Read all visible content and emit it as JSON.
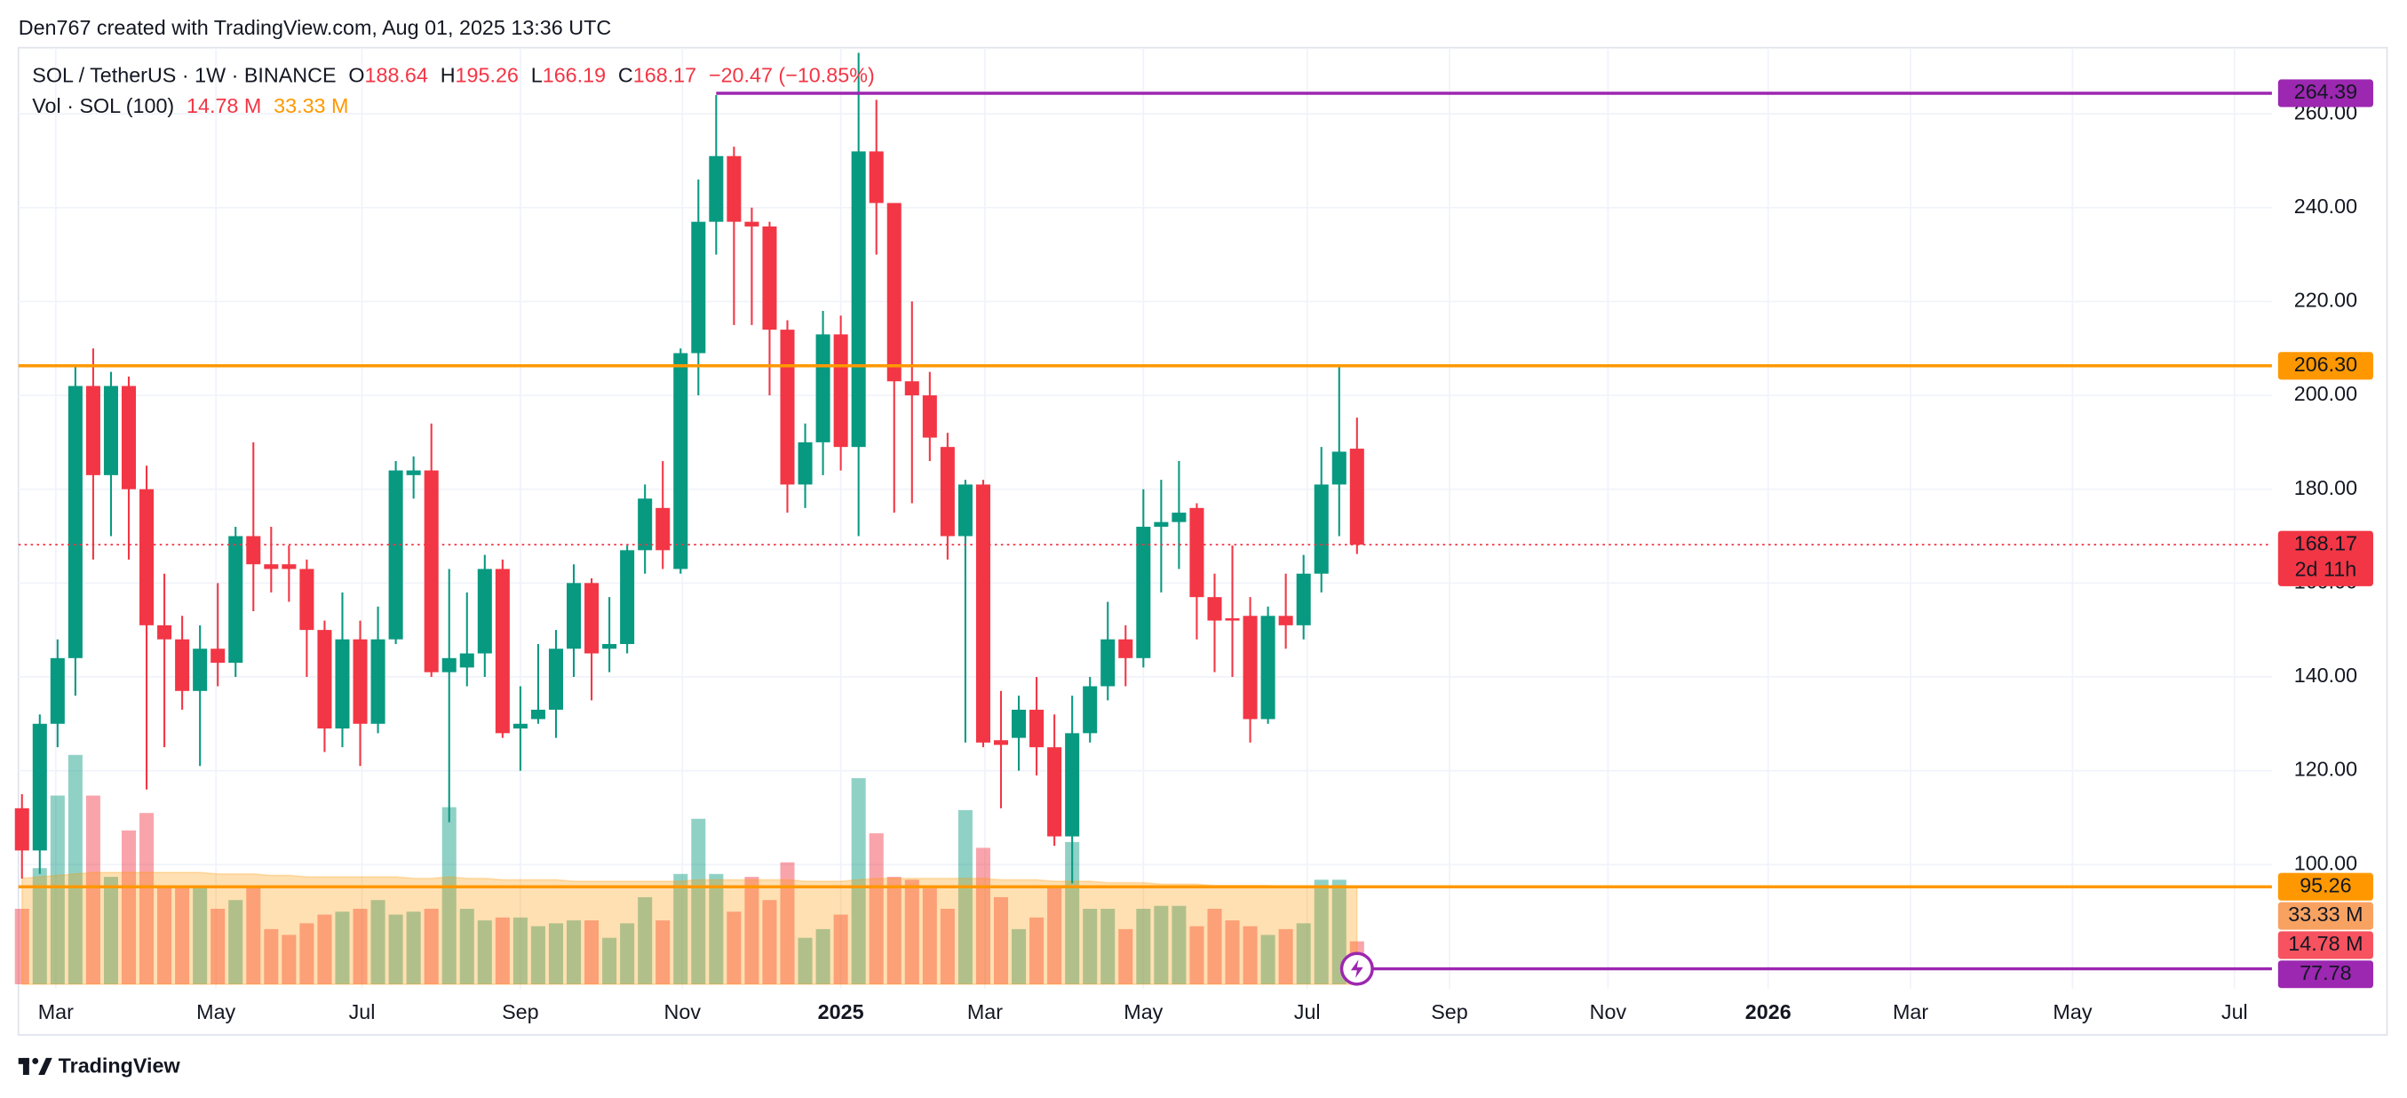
{
  "header": {
    "credit": "Den767 created with TradingView.com, Aug 01, 2025 13:36 UTC"
  },
  "footer": {
    "brand": "TradingView"
  },
  "chart_data": {
    "type": "candlestick",
    "title": "SOL / TetherUS · 1W · BINANCE",
    "ohlc_letters": [
      "O",
      "H",
      "L",
      "C"
    ],
    "change": "−20.47 (−10.85%)",
    "up_color": "#089981",
    "down_color": "#f23645",
    "x": [
      0,
      1,
      2,
      3,
      4,
      5,
      6,
      7,
      8,
      9,
      10,
      11,
      12,
      13,
      14,
      15,
      16,
      17,
      18,
      19,
      20,
      21,
      22,
      23,
      24,
      25,
      26,
      27,
      28,
      29,
      30,
      31,
      32,
      33,
      34,
      35,
      36,
      37,
      38,
      39,
      40,
      41,
      42,
      43,
      44,
      45,
      46,
      47,
      48,
      49,
      50,
      51,
      52,
      53,
      54,
      55,
      56,
      57,
      58,
      59,
      60,
      61,
      62,
      63,
      64,
      65,
      66,
      67,
      68,
      69,
      70,
      71,
      72,
      73,
      74,
      75
    ],
    "open": [
      112,
      103,
      130,
      144,
      202,
      183,
      202,
      180,
      151,
      148,
      137,
      146,
      143,
      170,
      164,
      164,
      163,
      150,
      129,
      148,
      130,
      148,
      183,
      184,
      141,
      142,
      145,
      163,
      129,
      131,
      133,
      146,
      160,
      146,
      147,
      167,
      176,
      163,
      209,
      237,
      251,
      237,
      236,
      214,
      181,
      190,
      213,
      189,
      252,
      241,
      203,
      200,
      189,
      170,
      181,
      126.5,
      127,
      133,
      125,
      106,
      128,
      138,
      148,
      144,
      172,
      173,
      176,
      157,
      152.5,
      153,
      131,
      153,
      151,
      162,
      181,
      188.64
    ],
    "high": [
      115,
      132,
      148,
      206,
      210,
      205,
      204,
      185,
      162,
      153,
      151,
      160,
      172,
      190,
      172,
      168,
      165,
      152,
      158,
      152,
      155,
      186,
      187,
      194,
      163,
      158,
      166,
      165,
      138,
      147,
      150,
      164,
      161,
      157,
      168,
      181,
      186,
      210,
      246,
      264,
      253,
      240,
      237,
      216,
      194,
      218,
      217,
      273,
      263,
      241,
      220,
      205,
      192,
      182,
      182,
      137,
      136,
      140,
      132,
      136,
      140,
      156,
      151,
      180,
      182,
      186,
      177,
      162,
      168,
      157,
      155,
      162,
      166,
      189,
      206,
      195.26
    ],
    "low": [
      97,
      98,
      125,
      136,
      165,
      170,
      165,
      116,
      125,
      133,
      121,
      138,
      140,
      154,
      158,
      156,
      140,
      124,
      125,
      121,
      128,
      147,
      178,
      140,
      109,
      138,
      140,
      127,
      120,
      130,
      127,
      140,
      135,
      141,
      145,
      162,
      163,
      162,
      200,
      230,
      215,
      215,
      200,
      175,
      176,
      183,
      184,
      170,
      230,
      175,
      177,
      186,
      165,
      126,
      125,
      112,
      120,
      119,
      104,
      96,
      126,
      135,
      138,
      142,
      158,
      163,
      148,
      141,
      140,
      126,
      130,
      146,
      148,
      158,
      170,
      166.19
    ],
    "close": [
      103,
      130,
      144,
      202,
      183,
      202,
      180,
      151,
      148,
      137,
      146,
      143,
      170,
      164,
      163,
      163,
      150,
      129,
      148,
      130,
      148,
      184,
      184,
      141,
      144,
      145,
      163,
      128,
      130,
      133,
      146,
      160,
      145,
      147,
      167,
      178,
      167,
      209,
      237,
      251,
      237,
      236,
      214,
      181,
      190,
      213,
      189,
      252,
      241,
      203,
      200,
      191,
      170,
      181,
      126,
      125.5,
      133,
      125,
      106,
      128,
      138,
      148,
      144,
      172,
      173,
      175,
      157,
      152,
      152,
      131,
      153,
      151,
      162,
      181,
      188,
      168.17
    ],
    "xlim": [
      -0.2,
      126.4
    ],
    "xticks": [
      {
        "value": 1.9,
        "label": "Mar"
      },
      {
        "value": 10.9,
        "label": "May"
      },
      {
        "value": 19.1,
        "label": "Jul"
      },
      {
        "value": 28.0,
        "label": "Sep"
      },
      {
        "value": 37.1,
        "label": "Nov"
      },
      {
        "value": 46.0,
        "label": "2025"
      },
      {
        "value": 54.1,
        "label": "Mar"
      },
      {
        "value": 63.0,
        "label": "May"
      },
      {
        "value": 72.2,
        "label": "Jul"
      },
      {
        "value": 80.2,
        "label": "Sep"
      },
      {
        "value": 89.1,
        "label": "Nov"
      },
      {
        "value": 98.1,
        "label": "2026"
      },
      {
        "value": 106.1,
        "label": "Mar"
      },
      {
        "value": 115.2,
        "label": "May"
      },
      {
        "value": 124.3,
        "label": "Jul"
      }
    ],
    "ylim": [
      73.5,
      274.1
    ],
    "yticks": [
      {
        "value": 100,
        "label": "100.00"
      },
      {
        "value": 120,
        "label": "120.00"
      },
      {
        "value": 140,
        "label": "140.00"
      },
      {
        "value": 160,
        "label": "160.00"
      },
      {
        "value": 180,
        "label": "180.00"
      },
      {
        "value": 200,
        "label": "200.00"
      },
      {
        "value": 220,
        "label": "220.00"
      },
      {
        "value": 240,
        "label": "240.00"
      },
      {
        "value": 260,
        "label": "260.00"
      }
    ],
    "grid": true,
    "levels": [
      {
        "value": 264.39,
        "label": "264.39",
        "color": "#9c27b0",
        "from": 39
      },
      {
        "value": 206.3,
        "label": "206.30",
        "color": "#ff9800"
      },
      {
        "value": 95.26,
        "label": "95.26",
        "color": "#ff9800"
      },
      {
        "value": 77.78,
        "label": "77.78",
        "color": "#9c27b0",
        "from": 75
      }
    ],
    "last_price": {
      "value": 168.17,
      "label": "168.17",
      "countdown": "2d 11h",
      "color": "#f23645"
    },
    "volume": {
      "name": "Vol · SOL (100)",
      "last_label": "14.78 M",
      "ma_label": "33.33 M",
      "ma_color": "#ff9800",
      "ylim": [
        0,
        110
      ],
      "values": [
        26,
        40,
        65,
        79,
        65,
        37,
        53,
        59,
        34,
        34,
        34,
        26,
        29,
        34,
        19,
        17,
        21,
        24,
        25,
        26,
        29,
        24,
        25,
        26,
        61,
        26,
        22,
        23,
        23,
        20,
        21,
        22,
        22,
        16,
        21,
        30,
        22,
        38,
        57,
        38,
        25,
        37,
        29,
        42,
        16,
        19,
        24,
        71,
        52,
        37,
        36,
        33,
        26,
        60,
        47,
        30,
        19,
        23,
        34,
        49,
        26,
        26,
        19,
        26,
        27,
        27,
        20,
        26,
        22,
        20,
        17,
        19,
        21,
        36,
        36,
        14.78
      ],
      "ma": [
        36.5,
        37,
        37.5,
        38,
        38.5,
        38.5,
        38.5,
        38.5,
        38.5,
        38.5,
        38.5,
        38,
        38,
        38,
        37.5,
        37.5,
        37,
        37,
        37,
        37,
        37,
        37,
        36.5,
        36.5,
        37,
        36.5,
        36.5,
        36,
        36,
        36,
        36,
        35.5,
        35.5,
        35.5,
        35.5,
        35.5,
        35.5,
        35.5,
        36,
        36,
        36,
        36,
        36,
        36,
        35.5,
        35.5,
        35.5,
        36,
        36.5,
        36.5,
        36.5,
        36.5,
        36.5,
        36.5,
        36.5,
        36,
        36,
        36,
        35.5,
        35.5,
        35.5,
        35,
        35,
        35,
        34.5,
        34.5,
        34.5,
        34,
        34,
        34,
        34,
        33.5,
        33.5,
        33.5,
        33.5,
        33.33
      ]
    }
  }
}
